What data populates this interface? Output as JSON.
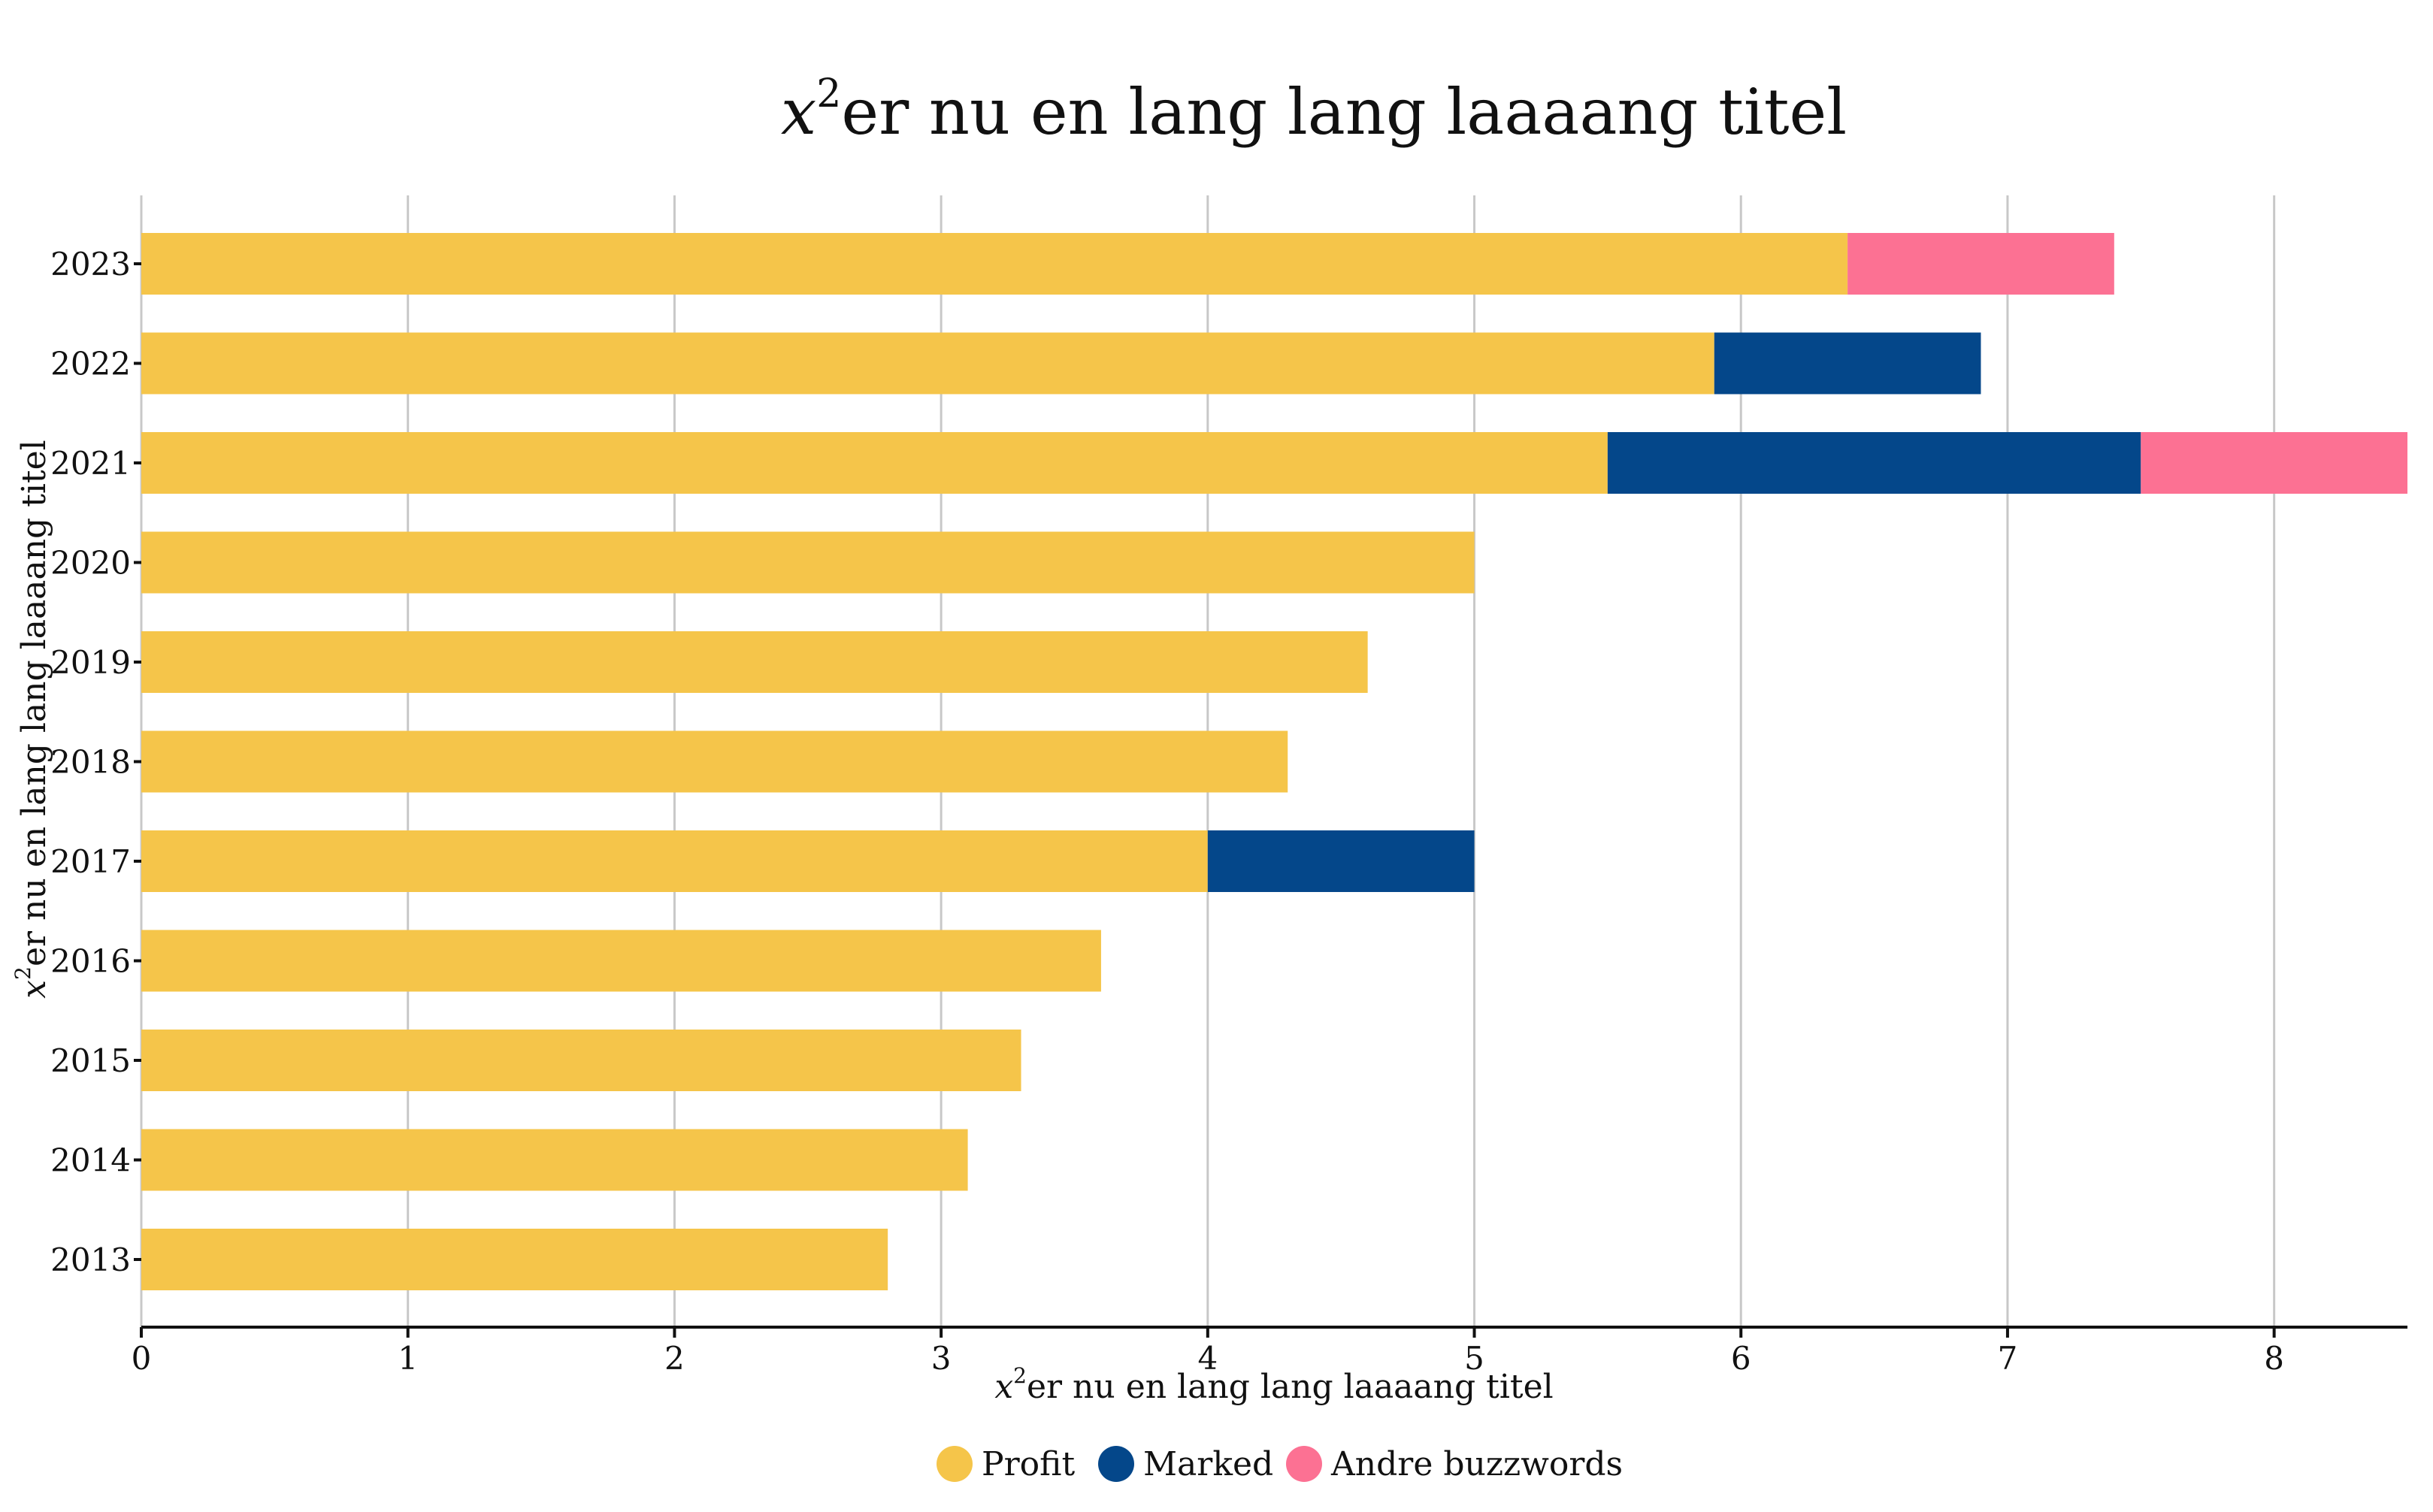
{
  "chart_data": {
    "type": "bar",
    "orientation": "horizontal",
    "stacked": true,
    "title": "er nu en lang lang laaaang titel",
    "title_prefix": "x",
    "title_superscript": "2",
    "xlabel": "er nu en lang lang laaaang titel",
    "xlabel_prefix": "x",
    "xlabel_superscript": "2",
    "ylabel": "er nu en lang lang laaaang titel",
    "ylabel_prefix": "x",
    "ylabel_superscript": "2",
    "xlim": [
      0,
      8.5
    ],
    "xticks": [
      "0",
      "1",
      "2",
      "3",
      "4",
      "5",
      "6",
      "7",
      "8"
    ],
    "grid": "vertical",
    "legend_position": "bottom",
    "categories": [
      "2013",
      "2014",
      "2015",
      "2016",
      "2017",
      "2018",
      "2019",
      "2020",
      "2021",
      "2022",
      "2023"
    ],
    "series": [
      {
        "name": "Profit",
        "color": "#F5C54A",
        "values": [
          2.8,
          3.1,
          3.3,
          3.6,
          4.0,
          4.3,
          4.6,
          5.0,
          5.5,
          5.9,
          6.4
        ]
      },
      {
        "name": "Marked",
        "color": "#04478A",
        "values": [
          0,
          0,
          0,
          0,
          1.0,
          0,
          0,
          0,
          2.0,
          1.0,
          0
        ]
      },
      {
        "name": "Andre buzzwords",
        "color": "#FC7193",
        "values": [
          0,
          0,
          0,
          0,
          0,
          0,
          0,
          0,
          1.0,
          0,
          1.0
        ]
      }
    ]
  }
}
